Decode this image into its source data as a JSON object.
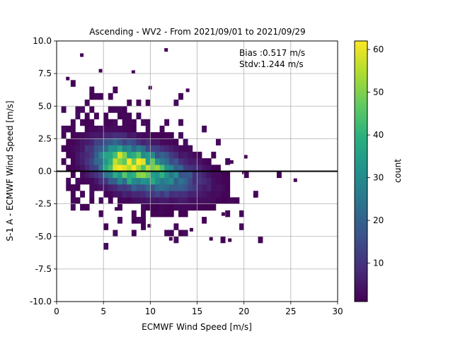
{
  "chart_data": {
    "type": "heatmap",
    "title": "Ascending - WV2 - From 2021/09/01 to 2021/09/29",
    "xlabel": "ECMWF Wind Speed [m/s]",
    "ylabel": "S-1 A - ECMWF Wind Speed [m/s]",
    "xlim": [
      0,
      30
    ],
    "ylim": [
      -10,
      10
    ],
    "xticks": [
      0,
      5,
      10,
      15,
      20,
      25,
      30
    ],
    "yticks": [
      -10.0,
      -7.5,
      -5.0,
      -2.5,
      0.0,
      2.5,
      5.0,
      7.5,
      10.0
    ],
    "grid": true,
    "reference_line_y": 0,
    "annotations": [
      "Bias :0.517 m/s",
      "Stdv:1.244 m/s"
    ],
    "colorbar": {
      "label": "count",
      "range": [
        1,
        62
      ],
      "ticks": [
        10,
        20,
        30,
        40,
        50,
        60
      ],
      "colormap": "viridis"
    },
    "density_model": {
      "peak_count": 62,
      "peak_x": 7.5,
      "peak_y": 0.5,
      "spread_x": 3.2,
      "spread_y": 1.05,
      "tilt": -0.16
    },
    "sparse_points": [
      [
        2.5,
        8.8
      ],
      [
        4.5,
        7.6
      ],
      [
        8.0,
        7.5
      ],
      [
        11.5,
        9.2
      ],
      [
        1.0,
        7.0
      ],
      [
        9.8,
        6.3
      ],
      [
        13.8,
        6.1
      ],
      [
        21.0,
        -2.0
      ],
      [
        25.3,
        -0.8
      ],
      [
        20.0,
        1.0
      ],
      [
        12.0,
        -5.3
      ],
      [
        16.3,
        -5.3
      ],
      [
        18.3,
        -5.4
      ],
      [
        9.7,
        -4.3
      ],
      [
        14.2,
        -4.6
      ],
      [
        3.0,
        -2.8
      ],
      [
        6.2,
        -3.0
      ],
      [
        17.6,
        -3.4
      ],
      [
        19.8,
        -0.2
      ],
      [
        18.5,
        0.6
      ]
    ]
  }
}
